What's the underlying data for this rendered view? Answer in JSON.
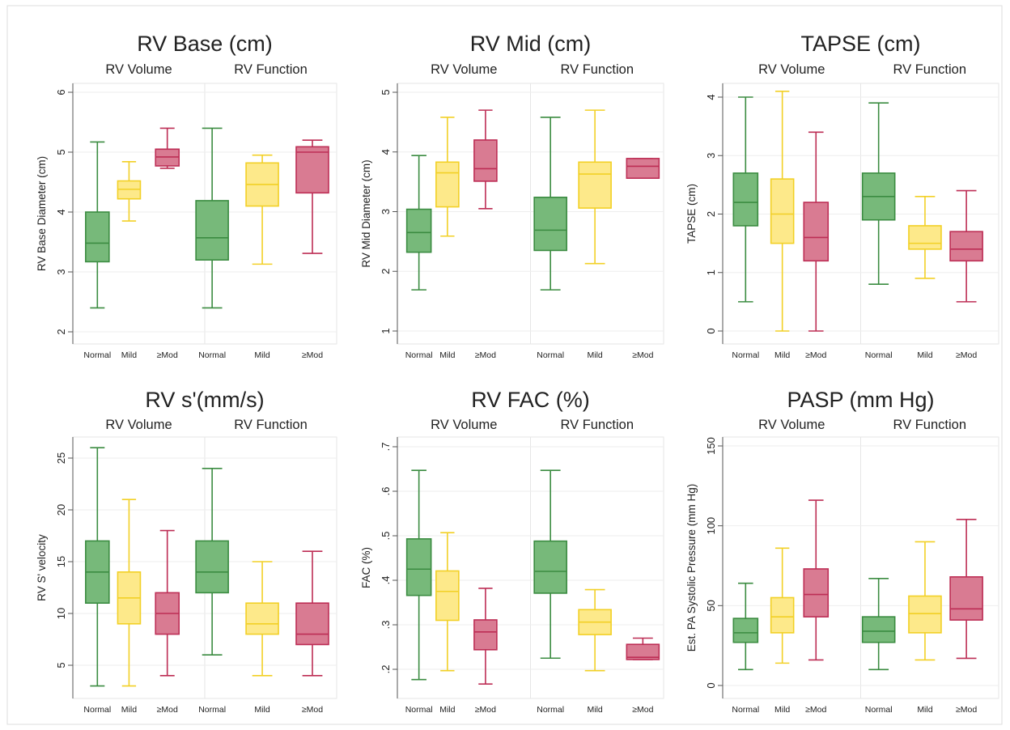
{
  "groups": [
    "RV Volume",
    "RV Function"
  ],
  "categories": [
    "Normal",
    "Mild",
    "≥Mod"
  ],
  "colors": {
    "normal_fill": "#77b97a",
    "normal_stroke": "#3b8c41",
    "mild_fill": "#fde98a",
    "mild_stroke": "#f2d026",
    "mod_fill": "#d97b92",
    "mod_stroke": "#bd2e55",
    "plot_border": "#e6e6e6",
    "grid": "#eeeeee"
  },
  "chart_data": [
    {
      "type": "boxplot",
      "title": "RV Base (cm)",
      "ylabel": "RV Base Diameter (cm)",
      "ylim": [
        2,
        6
      ],
      "yticks": [
        "2",
        "3",
        "4",
        "5",
        "6"
      ],
      "grid": true,
      "boxes": [
        [
          2.4,
          3.17,
          3.48,
          4.0,
          5.17
        ],
        [
          3.85,
          4.22,
          4.38,
          4.52,
          4.84
        ],
        [
          4.73,
          4.77,
          4.92,
          5.05,
          5.4
        ],
        [
          2.4,
          3.2,
          3.57,
          4.19,
          5.4
        ],
        [
          3.13,
          4.1,
          4.46,
          4.82,
          4.95
        ],
        [
          3.31,
          4.32,
          5.0,
          5.09,
          5.2
        ]
      ]
    },
    {
      "type": "boxplot",
      "title": "RV Mid (cm)",
      "ylabel": "RV Mid Diameter (cm)",
      "ylim": [
        1,
        5
      ],
      "yticks": [
        "1",
        "2",
        "3",
        "4",
        "5"
      ],
      "grid": true,
      "boxes": [
        [
          1.69,
          2.32,
          2.65,
          3.04,
          3.94
        ],
        [
          2.59,
          3.08,
          3.65,
          3.83,
          4.58
        ],
        [
          3.05,
          3.51,
          3.72,
          4.2,
          4.7
        ],
        [
          1.69,
          2.35,
          2.69,
          3.24,
          4.58
        ],
        [
          2.13,
          3.06,
          3.63,
          3.83,
          4.7
        ],
        [
          3.56,
          3.56,
          3.76,
          3.89,
          3.89
        ]
      ]
    },
    {
      "type": "boxplot",
      "title": "TAPSE (cm)",
      "ylabel": "TAPSE (cm)",
      "ylim": [
        0,
        4
      ],
      "yticks": [
        "0",
        "1",
        "2",
        "3",
        "4"
      ],
      "grid": true,
      "boxes": [
        [
          0.5,
          1.8,
          2.2,
          2.7,
          4.0
        ],
        [
          0.0,
          1.5,
          2.0,
          2.6,
          4.1
        ],
        [
          0.0,
          1.2,
          1.6,
          2.2,
          3.4
        ],
        [
          0.8,
          1.9,
          2.3,
          2.7,
          3.9
        ],
        [
          0.9,
          1.4,
          1.5,
          1.8,
          2.3
        ],
        [
          0.5,
          1.2,
          1.4,
          1.7,
          2.4
        ]
      ]
    },
    {
      "type": "boxplot",
      "title": "RV s'(mm/s)",
      "ylabel": "RV S' velocity",
      "ylim": [
        5,
        25
      ],
      "yticks": [
        "5",
        "10",
        "15",
        "20",
        "25"
      ],
      "grid": true,
      "boxes": [
        [
          3.0,
          11.0,
          14.0,
          17.0,
          26.0
        ],
        [
          3.0,
          9.0,
          11.5,
          14.0,
          21.0
        ],
        [
          4.0,
          8.0,
          10.0,
          12.0,
          18.0
        ],
        [
          6.0,
          12.0,
          14.0,
          17.0,
          24.0
        ],
        [
          4.0,
          8.0,
          9.0,
          11.0,
          15.0
        ],
        [
          4.0,
          7.0,
          8.0,
          11.0,
          16.0
        ]
      ]
    },
    {
      "type": "boxplot",
      "title": "RV FAC (%)",
      "ylabel": "FAC (%)",
      "ylim": [
        0.2,
        0.7
      ],
      "yticks": [
        ".2",
        ".3",
        ".4",
        ".5",
        ".6",
        ".7"
      ],
      "grid": true,
      "boxes": [
        [
          0.177,
          0.366,
          0.425,
          0.493,
          0.647
        ],
        [
          0.197,
          0.31,
          0.375,
          0.421,
          0.507
        ],
        [
          0.167,
          0.244,
          0.284,
          0.311,
          0.382
        ],
        [
          0.225,
          0.371,
          0.42,
          0.488,
          0.647
        ],
        [
          0.197,
          0.278,
          0.306,
          0.334,
          0.379
        ],
        [
          0.222,
          0.222,
          0.227,
          0.256,
          0.27
        ]
      ]
    },
    {
      "type": "boxplot",
      "title": "PASP (mm Hg)",
      "ylabel": "Est. PA Systolic Pressure (mm Hg)",
      "ylim": [
        0,
        150
      ],
      "yticks": [
        "0",
        "50",
        "100",
        "150"
      ],
      "grid": true,
      "boxes": [
        [
          10,
          27,
          33,
          42,
          64
        ],
        [
          14,
          33,
          43,
          55,
          86
        ],
        [
          16,
          43,
          57,
          73,
          116
        ],
        [
          10,
          27,
          34,
          43,
          67
        ],
        [
          16,
          33,
          45,
          56,
          90
        ],
        [
          17,
          41,
          48,
          68,
          104
        ]
      ]
    }
  ]
}
